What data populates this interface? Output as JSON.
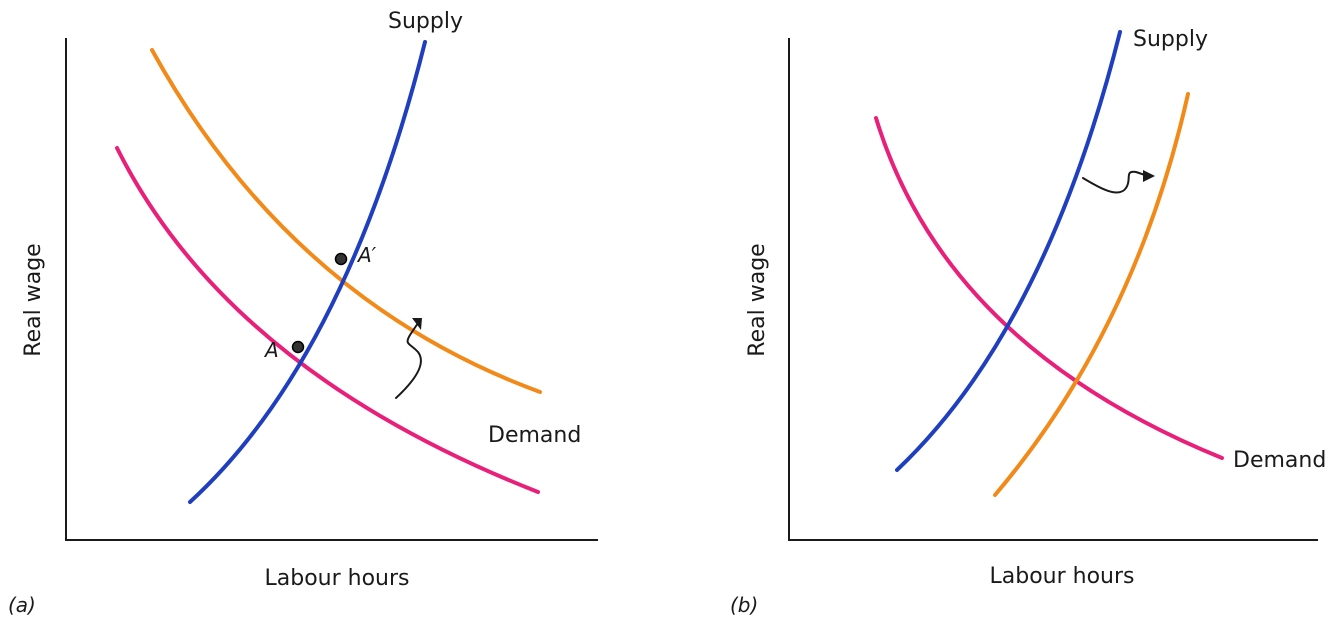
{
  "panel_a": {
    "tag": "(a)",
    "xlabel": "Labour hours",
    "ylabel": "Real wage",
    "supply_label": "Supply",
    "demand_label": "Demand",
    "point_a": "A",
    "point_a_prime": "A′"
  },
  "panel_b": {
    "tag": "(b)",
    "xlabel": "Labour hours",
    "ylabel": "Real wage",
    "supply_label": "Supply",
    "demand_label": "Demand"
  },
  "colors": {
    "supply": "#1f3fbf",
    "demand": "#e8207a",
    "shifted": "#f28a1a"
  }
}
